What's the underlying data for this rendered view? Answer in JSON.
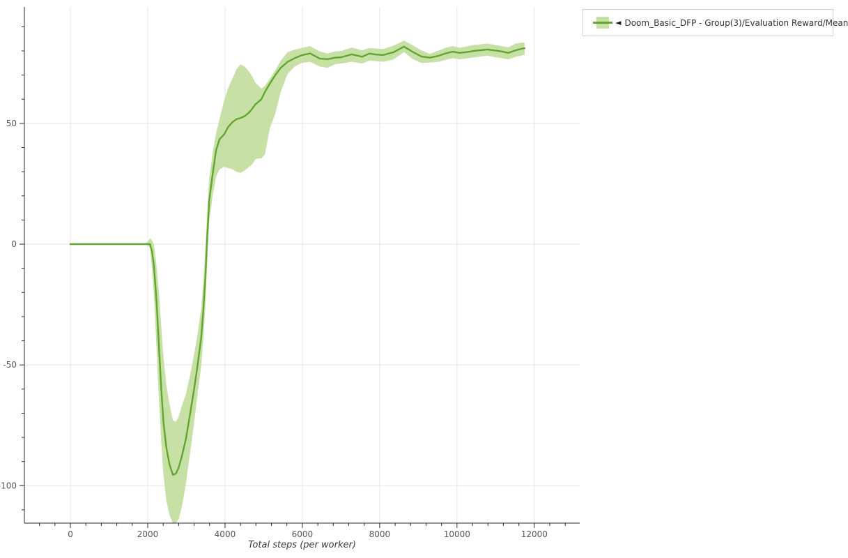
{
  "legend": {
    "marker": "◄",
    "label": "Doom_Basic_DFP - Group(3)/Evaluation Reward/Mean"
  },
  "colors": {
    "line": "#63a62f",
    "band": "#c7e0a5",
    "grid": "#e5e5e5",
    "axis": "#2a2a2a",
    "tick_label": "#555555",
    "xlabel_color": "#3c3c3c",
    "legend_border": "#cfcfcf",
    "legend_text": "#333333",
    "background": "#ffffff"
  },
  "chart_data": {
    "type": "line",
    "title": "",
    "xlabel": "Total steps (per worker)",
    "ylabel": "",
    "xlim": [
      -1190,
      13175
    ],
    "ylim": [
      -115.5,
      98.2
    ],
    "x_major_ticks": [
      0,
      2000,
      4000,
      6000,
      8000,
      10000,
      12000
    ],
    "x_minor_tick_step": 400,
    "y_major_ticks": [
      -100,
      -50,
      0,
      50
    ],
    "y_minor_tick_step": 10,
    "grid": true,
    "legend_position": "outside-top-right",
    "series": [
      {
        "name": "Doom_Basic_DFP - Group(3)/Evaluation Reward/Mean",
        "x": [
          0,
          500,
          1000,
          1500,
          1900,
          2000,
          2060,
          2110,
          2160,
          2230,
          2290,
          2350,
          2410,
          2480,
          2560,
          2650,
          2730,
          2800,
          2880,
          2990,
          3100,
          3200,
          3290,
          3380,
          3440,
          3490,
          3540,
          3590,
          3680,
          3770,
          3860,
          3980,
          4080,
          4190,
          4300,
          4400,
          4510,
          4620,
          4700,
          4780,
          4870,
          4940,
          5030,
          5160,
          5300,
          5440,
          5620,
          5800,
          5980,
          6200,
          6450,
          6650,
          6850,
          7010,
          7280,
          7550,
          7730,
          7910,
          8090,
          8360,
          8630,
          8870,
          9080,
          9300,
          9530,
          9710,
          9890,
          10070,
          10290,
          10430,
          10790,
          10970,
          11150,
          11330,
          11510,
          11690,
          11750
        ],
        "mean": [
          0,
          0,
          0,
          0,
          0,
          0,
          0,
          -3,
          -9,
          -24,
          -42,
          -60,
          -74,
          -84,
          -91,
          -95.5,
          -95,
          -92.5,
          -88,
          -80.5,
          -70,
          -60,
          -50,
          -39,
          -27,
          -14,
          3,
          18,
          29,
          39,
          43.5,
          45.5,
          48.5,
          50.5,
          51.8,
          52.2,
          53,
          54.5,
          56,
          57.8,
          59,
          60,
          63,
          66.5,
          70,
          73,
          75.5,
          77,
          78.2,
          79,
          76.8,
          76.6,
          77.2,
          77.4,
          78.6,
          77.6,
          78.9,
          78.5,
          78.3,
          79.5,
          81.8,
          79.5,
          77.7,
          77.2,
          78,
          79,
          79.7,
          79.2,
          79.6,
          80,
          80.6,
          80.2,
          79.8,
          79.2,
          80.2,
          81,
          81.1
        ],
        "lo": [
          0,
          0,
          0,
          0,
          0,
          -0.5,
          -1.5,
          -10,
          -21,
          -44,
          -64,
          -82,
          -96,
          -106,
          -112,
          -115.5,
          -115.5,
          -114,
          -109,
          -99,
          -86,
          -74,
          -62,
          -51,
          -39,
          -26,
          -7,
          9,
          20,
          28,
          31,
          32,
          31.5,
          31,
          30,
          29.5,
          30.5,
          32,
          33,
          35,
          35.5,
          35.5,
          37,
          48,
          54,
          63,
          70.5,
          73.5,
          75,
          75.5,
          73.5,
          73,
          74.5,
          74.8,
          75.5,
          74.8,
          76,
          75.8,
          75.5,
          76.5,
          79.5,
          76.5,
          75,
          75.2,
          75.5,
          76.3,
          77,
          76.5,
          77,
          77.3,
          78,
          77.5,
          77,
          76.5,
          77.5,
          78.2,
          78.3
        ],
        "hi": [
          0,
          0,
          0,
          0,
          0,
          1,
          2.5,
          1.5,
          0,
          -9,
          -20,
          -34,
          -47,
          -58,
          -66,
          -73,
          -73.5,
          -71.5,
          -67,
          -62,
          -54,
          -45.5,
          -37,
          -27,
          -15,
          -2,
          13,
          27,
          38,
          46,
          52,
          59.5,
          64.5,
          68.5,
          72.5,
          74.5,
          73.5,
          71.5,
          69.5,
          67,
          65.5,
          64.5,
          65.5,
          68.5,
          72,
          76,
          79.5,
          80.5,
          81.2,
          82,
          79.8,
          79,
          79.8,
          80,
          81.4,
          80.2,
          81.2,
          81,
          80.8,
          82.2,
          84.3,
          82.2,
          80.2,
          78.8,
          80.2,
          81.3,
          82,
          81.3,
          82,
          82.5,
          83,
          82.5,
          82,
          81.5,
          83,
          83.5,
          83.3
        ]
      }
    ]
  }
}
